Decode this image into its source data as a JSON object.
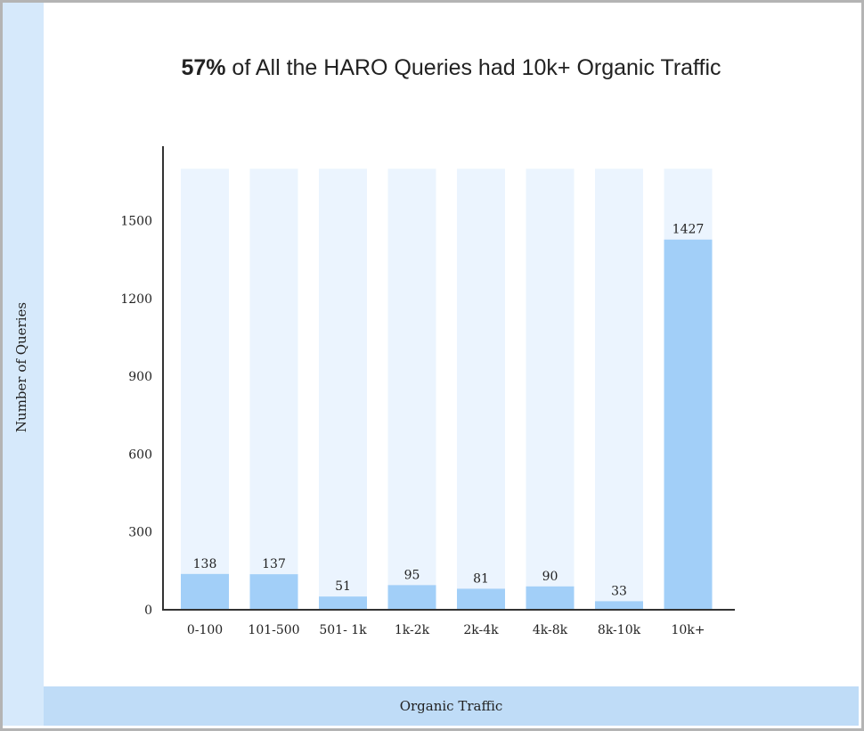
{
  "chart_data": {
    "type": "bar",
    "title_bold": "57%",
    "title_rest": " of All the HARO Queries had 10k+ Organic Traffic",
    "xlabel": "Organic Traffic",
    "ylabel": "Number of Queries",
    "categories": [
      "0-100",
      "101-500",
      "501- 1k",
      "1k-2k",
      "2k-4k",
      "4k-8k",
      "8k-10k",
      "10k+"
    ],
    "values": [
      138,
      137,
      51,
      95,
      81,
      90,
      33,
      1427
    ],
    "data_labels": [
      "138",
      "137",
      "51",
      "95",
      "81",
      "90",
      "33",
      "1427"
    ],
    "yticks": [
      0,
      300,
      600,
      900,
      1200,
      1500
    ],
    "ylim": [
      0,
      1700
    ],
    "grid": false,
    "colors": {
      "bar": "#a2cff8",
      "bar_background": "#ebf4fe",
      "axis": "#333333"
    }
  }
}
